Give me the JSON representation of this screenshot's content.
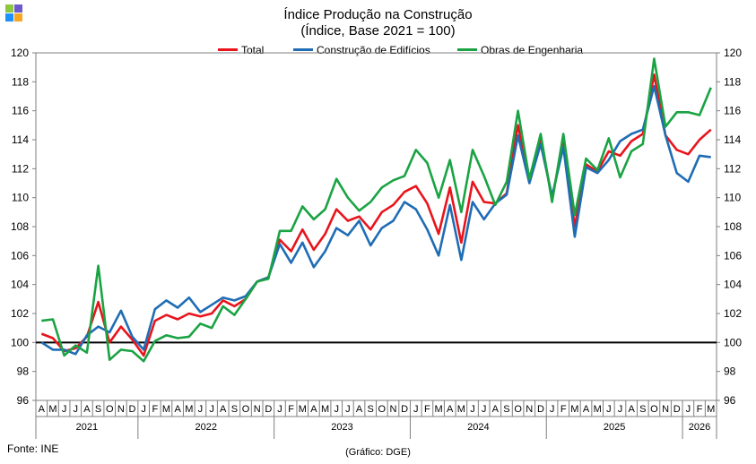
{
  "title": "Índice Produção na Construção",
  "subtitle": "(Índice, Base 2021 = 100)",
  "source": "Fonte: INE",
  "credit": "(Gráfico: DGE)",
  "colors": {
    "logo": [
      "#8dc63f",
      "#6a5acd",
      "#1e90ff",
      "#f5a623"
    ]
  },
  "chart_data": {
    "type": "line",
    "ylim": [
      96,
      120
    ],
    "yticks": [
      "96",
      "98",
      "100",
      "102",
      "104",
      "106",
      "108",
      "110",
      "112",
      "114",
      "116",
      "118",
      "120"
    ],
    "reference_line": 100,
    "grid": false,
    "legend_position": "top",
    "months": [
      "A",
      "M",
      "J",
      "J",
      "A",
      "S",
      "O",
      "N",
      "D",
      "J",
      "F",
      "M",
      "A",
      "M",
      "J",
      "J",
      "A",
      "S",
      "O",
      "N",
      "D",
      "J",
      "F",
      "M",
      "A",
      "M",
      "J",
      "J",
      "A",
      "S",
      "O",
      "N",
      "D",
      "J",
      "F",
      "M",
      "A",
      "M",
      "J",
      "J",
      "A",
      "S",
      "O",
      "N",
      "D",
      "J",
      "F",
      "M",
      "A",
      "M",
      "J",
      "J",
      "A",
      "S",
      "O",
      "N",
      "D",
      "J",
      "F",
      "M"
    ],
    "years": [
      {
        "label": "2021",
        "start": 0,
        "end": 8
      },
      {
        "label": "2022",
        "start": 9,
        "end": 20
      },
      {
        "label": "2023",
        "start": 21,
        "end": 32
      },
      {
        "label": "2024",
        "start": 33,
        "end": 44
      },
      {
        "label": "2025",
        "start": 45,
        "end": 56
      },
      {
        "label": "2026",
        "start": 57,
        "end": 59
      }
    ],
    "series": [
      {
        "name": "Total",
        "color": "#e8141c",
        "values": [
          100.6,
          100.3,
          99.4,
          99.6,
          100.4,
          102.8,
          100.0,
          101.1,
          100.2,
          99.1,
          101.5,
          101.9,
          101.6,
          102.0,
          101.8,
          102.0,
          102.9,
          102.5,
          103.0,
          104.2,
          104.5,
          107.1,
          106.3,
          107.8,
          106.4,
          107.5,
          109.2,
          108.4,
          108.7,
          107.8,
          109.0,
          109.5,
          110.4,
          110.8,
          109.6,
          107.5,
          110.7,
          106.9,
          111.1,
          109.7,
          109.6,
          110.3,
          115.0,
          111.2,
          114.0,
          110.0,
          113.8,
          108.0,
          112.3,
          111.8,
          113.2,
          112.9,
          113.9,
          114.4,
          118.5,
          114.3,
          113.3,
          113.0,
          114.0,
          114.7
        ]
      },
      {
        "name": "Construção de Edifícios",
        "color": "#1f6db5",
        "values": [
          100.0,
          99.5,
          99.5,
          99.2,
          100.5,
          101.1,
          100.7,
          102.2,
          100.4,
          99.5,
          102.3,
          102.9,
          102.4,
          103.1,
          102.1,
          102.6,
          103.1,
          102.9,
          103.2,
          104.2,
          104.5,
          106.8,
          105.5,
          106.9,
          105.2,
          106.3,
          107.9,
          107.4,
          108.4,
          106.7,
          107.9,
          108.4,
          109.7,
          109.2,
          107.8,
          106.0,
          109.5,
          105.7,
          109.7,
          108.5,
          109.6,
          110.2,
          114.3,
          111.0,
          113.7,
          110.1,
          113.5,
          107.3,
          112.1,
          111.7,
          112.6,
          113.9,
          114.4,
          114.7,
          117.7,
          114.3,
          111.7,
          111.1,
          112.9,
          112.8
        ]
      },
      {
        "name": "Obras de Engenharia",
        "color": "#1aa343",
        "values": [
          101.5,
          101.6,
          99.1,
          99.8,
          99.3,
          105.3,
          98.8,
          99.5,
          99.4,
          98.7,
          100.1,
          100.5,
          100.3,
          100.4,
          101.3,
          101.0,
          102.5,
          101.9,
          103.0,
          104.2,
          104.4,
          107.7,
          107.7,
          109.4,
          108.5,
          109.2,
          111.3,
          110.0,
          109.1,
          109.7,
          110.7,
          111.2,
          111.5,
          113.3,
          112.4,
          110.0,
          112.6,
          109.0,
          113.3,
          111.5,
          109.5,
          111.1,
          116.0,
          111.3,
          114.4,
          109.7,
          114.4,
          108.8,
          112.7,
          111.9,
          114.1,
          111.4,
          113.2,
          113.7,
          119.6,
          114.9,
          115.9,
          115.9,
          115.7,
          117.6
        ]
      }
    ]
  }
}
